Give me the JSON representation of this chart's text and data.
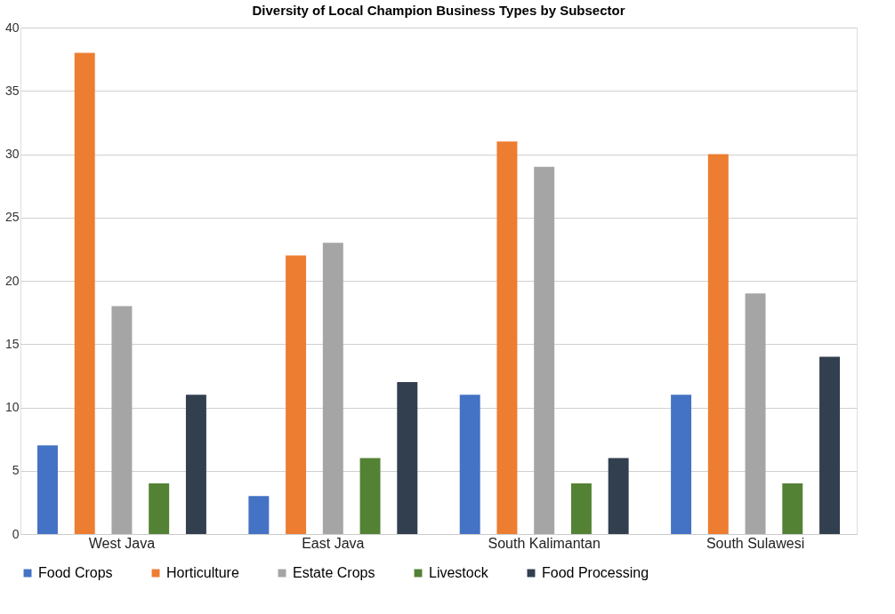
{
  "chart_data": {
    "type": "bar",
    "title": "Diversity of Local Champion Business Types by Subsector",
    "categories": [
      "West Java",
      "East Java",
      "South Kalimantan",
      "South Sulawesi"
    ],
    "series": [
      {
        "name": "Food Crops",
        "color": "#4472c4",
        "values": [
          7,
          3,
          11,
          11
        ]
      },
      {
        "name": "Horticulture",
        "color": "#ed7d31",
        "values": [
          38,
          22,
          31,
          30
        ]
      },
      {
        "name": "Estate Crops",
        "color": "#a5a5a5",
        "values": [
          18,
          23,
          29,
          19
        ]
      },
      {
        "name": "Livestock",
        "color": "#548235",
        "values": [
          4,
          6,
          4,
          4
        ]
      },
      {
        "name": "Food Processing",
        "color": "#323f4f",
        "values": [
          11,
          12,
          6,
          14
        ]
      }
    ],
    "ylim": [
      0,
      40
    ],
    "yticks": [
      0,
      5,
      10,
      15,
      20,
      25,
      30,
      35,
      40
    ],
    "grid": "y",
    "legend": "bottom"
  }
}
